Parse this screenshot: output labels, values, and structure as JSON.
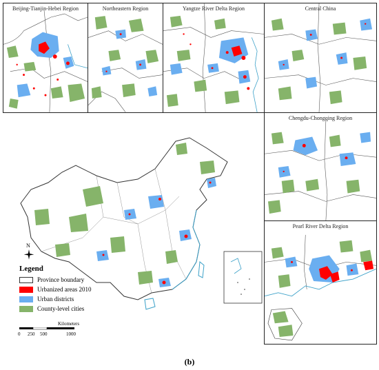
{
  "panels": {
    "bth": "Beijing-Tianjin-Hebei Region",
    "ne": "Northeastern Region",
    "yrd": "Yangtze River Delta Region",
    "cc": "Central China",
    "ccg": "Chengdu-Chongqing Region",
    "prd": "Pearl River Delta Region"
  },
  "legend": {
    "title": "Legend",
    "items": [
      {
        "label": "Province boundary",
        "color": "#ffffff",
        "border": "#333333"
      },
      {
        "label": "Urbanized areas 2010",
        "color": "#ff0000",
        "border": "#ff0000"
      },
      {
        "label": "Urban districts",
        "color": "#6aaef0",
        "border": "#6aaef0"
      },
      {
        "label": "County-level cities",
        "color": "#86b46a",
        "border": "#86b46a"
      }
    ]
  },
  "scale": {
    "ticks": [
      "0",
      "250",
      "500",
      "1000"
    ],
    "unit": "Kilometers"
  },
  "north_label": "N",
  "caption": "(b)",
  "colors": {
    "urban": "#6aaef0",
    "county": "#86b46a",
    "urbanized": "#ff0000",
    "boundary": "#333333",
    "coast": "#3aa0c8"
  }
}
